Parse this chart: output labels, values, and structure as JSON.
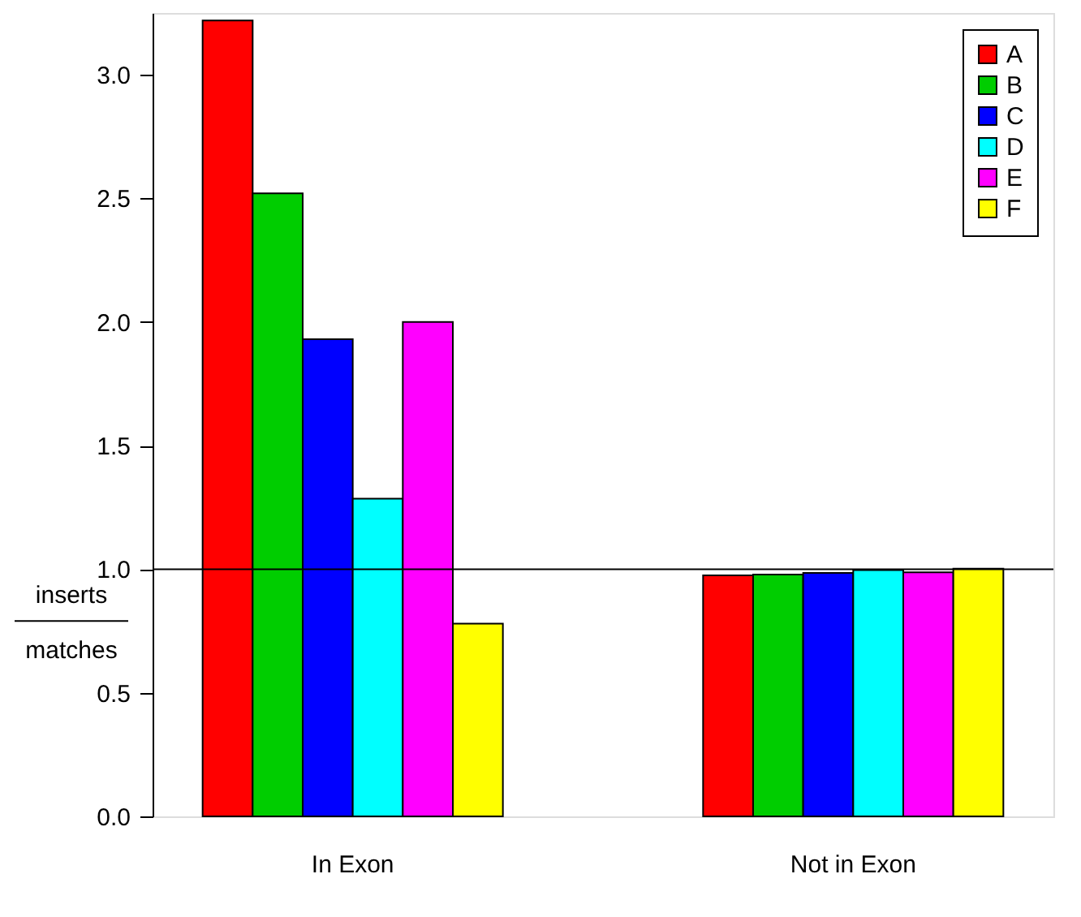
{
  "chart_data": {
    "type": "bar",
    "ylabel": "inserts\nmatches",
    "categories": [
      "In Exon",
      "Not in Exon"
    ],
    "series": [
      {
        "name": "A",
        "color": "#ff0000",
        "values": [
          3.22,
          0.975
        ]
      },
      {
        "name": "B",
        "color": "#00cd00",
        "values": [
          2.52,
          0.978
        ]
      },
      {
        "name": "C",
        "color": "#0000ff",
        "values": [
          1.93,
          0.985
        ]
      },
      {
        "name": "D",
        "color": "#00ffff",
        "values": [
          1.285,
          0.996
        ]
      },
      {
        "name": "E",
        "color": "#ff00ff",
        "values": [
          2.0,
          0.987
        ]
      },
      {
        "name": "F",
        "color": "#ffff00",
        "values": [
          0.78,
          1.002
        ]
      }
    ],
    "ylim": [
      0,
      3.25
    ],
    "yticks": [
      {
        "value": 0,
        "label": "0.0"
      },
      {
        "value": 0.5,
        "label": "0.5"
      },
      {
        "value": 1,
        "label": "1.0"
      },
      {
        "value": 1.5,
        "label": "1.5"
      },
      {
        "value": 2,
        "label": "2.0"
      },
      {
        "value": 2.5,
        "label": "2.5"
      },
      {
        "value": 3,
        "label": "3.0"
      }
    ],
    "ref_lines": [
      {
        "axis": "y",
        "value": 1,
        "label": null,
        "color": "#000000"
      }
    ],
    "legend": "top right"
  }
}
